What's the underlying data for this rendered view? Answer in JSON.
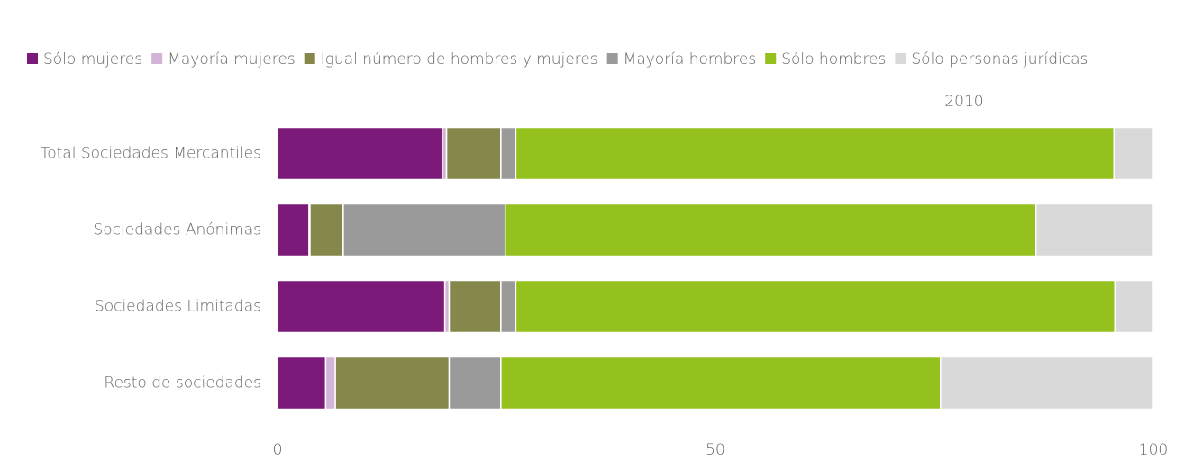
{
  "chart_data": {
    "type": "stacked_bar_horizontal",
    "subtitle": "2010",
    "categories": [
      "Total Sociedades Mercantiles",
      "Sociedades Anónimas",
      "Sociedades Limitadas",
      "Resto de sociedades"
    ],
    "series": [
      {
        "name": "Sólo mujeres",
        "color": "#7b1a78",
        "values": [
          18.8,
          3.6,
          19.1,
          5.5
        ]
      },
      {
        "name": "Mayoría mujeres",
        "color": "#d4b4d6",
        "values": [
          0.5,
          0.1,
          0.5,
          1.1
        ]
      },
      {
        "name": "Igual número de hombres y mujeres",
        "color": "#86874a",
        "values": [
          6.2,
          3.8,
          5.9,
          13.0
        ]
      },
      {
        "name": "Mayoría hombres",
        "color": "#9a9a9a",
        "values": [
          1.7,
          18.5,
          1.7,
          5.9
        ]
      },
      {
        "name": "Sólo hombres",
        "color": "#95c11f",
        "values": [
          68.3,
          60.6,
          68.4,
          50.2
        ]
      },
      {
        "name": "Sólo personas jurídicas",
        "color": "#d9d9d9",
        "values": [
          4.5,
          13.4,
          4.4,
          24.3
        ]
      }
    ],
    "xlim": [
      0,
      100
    ],
    "xticks": [
      0,
      50,
      100
    ],
    "grid": false,
    "legend": "top"
  }
}
